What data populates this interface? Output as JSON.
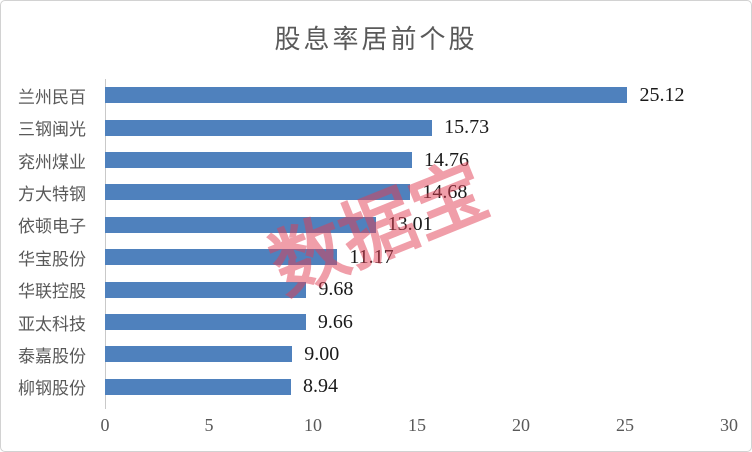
{
  "title": "股息率居前个股",
  "watermark_text": "数据宝",
  "colors": {
    "bar": "#4F81BD",
    "title_text": "#595959",
    "category_text": "#595959",
    "tick_text": "#595959",
    "value_text": "#1a1a1a",
    "axis_line": "#c9c9c9",
    "watermark": "rgba(226,62,84,0.5)",
    "border": "#d2d2d2"
  },
  "chart_data": {
    "type": "bar",
    "orientation": "horizontal",
    "title": "股息率居前个股",
    "categories": [
      "兰州民百",
      "三钢闽光",
      "兖州煤业",
      "方大特钢",
      "依顿电子",
      "华宝股份",
      "华联控股",
      "亚太科技",
      "泰嘉股份",
      "柳钢股份"
    ],
    "values": [
      25.12,
      15.73,
      14.76,
      14.68,
      13.01,
      11.17,
      9.68,
      9.66,
      9.0,
      8.94
    ],
    "value_labels": [
      "25.12",
      "15.73",
      "14.76",
      "14.68",
      "13.01",
      "11.17",
      "9.68",
      "9.66",
      "9.00",
      "8.94"
    ],
    "xlabel": "",
    "ylabel": "",
    "xlim": [
      0,
      30
    ],
    "xticks": [
      "0",
      "5",
      "10",
      "15",
      "20",
      "25",
      "30"
    ],
    "grid": false,
    "legend": false,
    "annotations": [
      "数据宝 watermark, rotated, pink, semi-transparent"
    ]
  }
}
